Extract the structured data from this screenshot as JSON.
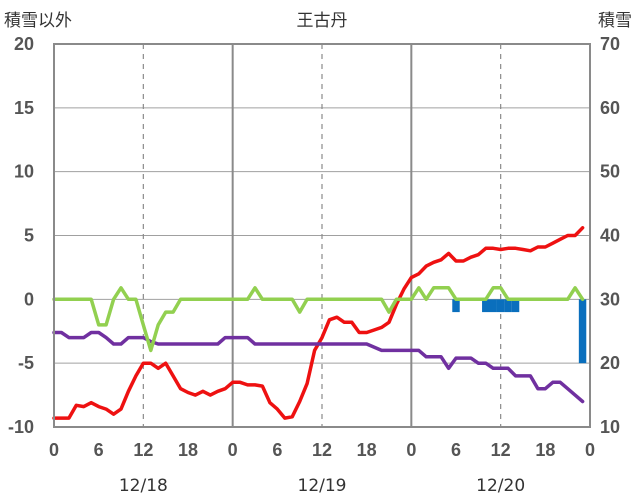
{
  "chart_data": {
    "type": "line",
    "title": "王古丹",
    "left_axis_label": "積雪以外",
    "right_axis_label": "積雪",
    "left_ylim": [
      -10,
      20
    ],
    "left_ticks": [
      "-10",
      "-5",
      "0",
      "5",
      "10",
      "15",
      "20"
    ],
    "right_ylim": [
      10,
      70
    ],
    "right_ticks": [
      "10",
      "20",
      "30",
      "40",
      "50",
      "60",
      "70"
    ],
    "hour_ticks": [
      "0",
      "6",
      "12",
      "18",
      "0",
      "6",
      "12",
      "18",
      "0",
      "6",
      "12",
      "18",
      "0"
    ],
    "date_labels": [
      {
        "label": "12/18",
        "hour": 12
      },
      {
        "label": "12/19",
        "hour": 36
      },
      {
        "label": "12/20",
        "hour": 60
      }
    ],
    "x_range_hours": [
      0,
      72
    ],
    "grid": true,
    "series": [
      {
        "color": "#ee1111",
        "axis": "left",
        "x": [
          0,
          2,
          3,
          4,
          5,
          6,
          7,
          8,
          9,
          10,
          11,
          12,
          13,
          14,
          15,
          16,
          17,
          18,
          19,
          20,
          21,
          22,
          23,
          24,
          25,
          26,
          27,
          28,
          29,
          30,
          31,
          32,
          33,
          34,
          35,
          36,
          37,
          38,
          39,
          40,
          41,
          42,
          43,
          44,
          45,
          46,
          47,
          48,
          49,
          50,
          51,
          52,
          53,
          54,
          55,
          56,
          57,
          58,
          59,
          60,
          61,
          62,
          63,
          64,
          65,
          66,
          67,
          68,
          69,
          70,
          71
        ],
        "values": [
          -9.3,
          -9.3,
          -8.3,
          -8.4,
          -8.1,
          -8.4,
          -8.6,
          -9.0,
          -8.6,
          -7.2,
          -6.0,
          -5.0,
          -5.0,
          -5.4,
          -5.0,
          -6.0,
          -7.0,
          -7.3,
          -7.5,
          -7.2,
          -7.5,
          -7.2,
          -7.0,
          -6.5,
          -6.5,
          -6.7,
          -6.7,
          -6.8,
          -8.1,
          -8.6,
          -9.3,
          -9.2,
          -8.0,
          -6.6,
          -4.0,
          -3.0,
          -1.6,
          -1.4,
          -1.8,
          -1.8,
          -2.6,
          -2.6,
          -2.4,
          -2.2,
          -1.8,
          -0.4,
          0.8,
          1.7,
          2.0,
          2.6,
          2.9,
          3.1,
          3.6,
          3.0,
          3.0,
          3.3,
          3.5,
          4.0,
          4.0,
          3.9,
          4.0,
          4.0,
          3.9,
          3.8,
          4.1,
          4.1,
          4.4,
          4.7,
          5.0,
          5.0,
          5.6
        ]
      },
      {
        "color": "#7030a0",
        "axis": "left",
        "x": [
          0,
          1,
          2,
          4,
          5,
          6,
          7,
          8,
          9,
          10,
          11,
          12,
          13,
          14,
          16,
          18,
          20,
          22,
          23,
          24,
          26,
          27,
          28,
          30,
          32,
          34,
          36,
          38,
          40,
          42,
          44,
          46,
          47,
          48,
          49,
          50,
          51,
          52,
          53,
          54,
          56,
          57,
          58,
          59,
          60,
          61,
          62,
          63,
          64,
          65,
          66,
          67,
          68,
          69,
          70,
          71
        ],
        "values": [
          -2.6,
          -2.6,
          -3.0,
          -3.0,
          -2.6,
          -2.6,
          -3.0,
          -3.5,
          -3.5,
          -3.0,
          -3.0,
          -3.0,
          -3.3,
          -3.5,
          -3.5,
          -3.5,
          -3.5,
          -3.5,
          -3.0,
          -3.0,
          -3.0,
          -3.5,
          -3.5,
          -3.5,
          -3.5,
          -3.5,
          -3.5,
          -3.5,
          -3.5,
          -3.5,
          -4.0,
          -4.0,
          -4.0,
          -4.0,
          -4.0,
          -4.5,
          -4.5,
          -4.5,
          -5.4,
          -4.6,
          -4.6,
          -5.0,
          -5.0,
          -5.4,
          -5.4,
          -5.4,
          -6.0,
          -6.0,
          -6.0,
          -7.0,
          -7.0,
          -6.5,
          -6.5,
          -7.0,
          -7.5,
          -8.0
        ]
      },
      {
        "color": "#92d050",
        "axis": "left",
        "x": [
          0,
          2,
          4,
          5,
          6,
          7,
          8,
          9,
          10,
          11,
          12,
          13,
          14,
          15,
          16,
          17,
          18,
          20,
          22,
          24,
          26,
          27,
          28,
          30,
          32,
          33,
          34,
          36,
          38,
          40,
          42,
          44,
          45,
          46,
          47,
          48,
          49,
          50,
          51,
          52,
          53,
          54,
          55,
          56,
          57,
          58,
          59,
          60,
          61,
          62,
          63,
          64,
          66,
          68,
          69,
          70,
          71
        ],
        "values": [
          0,
          0,
          0,
          0,
          -2.0,
          -2.0,
          0,
          0.9,
          0,
          0,
          -2.0,
          -4.0,
          -2.0,
          -1.0,
          -1.0,
          0,
          0,
          0,
          0,
          0,
          0,
          0.9,
          0,
          0,
          0,
          -1.0,
          0,
          0,
          0,
          0,
          0,
          0,
          -1.0,
          0,
          0,
          0,
          0.9,
          0,
          0.9,
          0.9,
          0.9,
          0,
          0,
          0,
          0,
          0,
          0.9,
          0.9,
          0,
          0,
          0,
          0,
          0,
          0,
          0,
          0.9,
          0
        ]
      }
    ],
    "bars": {
      "color": "#0a6fbd",
      "axis": "left",
      "x": [
        54,
        58,
        59,
        60,
        61,
        62,
        71
      ],
      "values": [
        -1.0,
        -1.0,
        -1.0,
        -1.0,
        -1.0,
        -1.0,
        -5.0
      ]
    }
  }
}
